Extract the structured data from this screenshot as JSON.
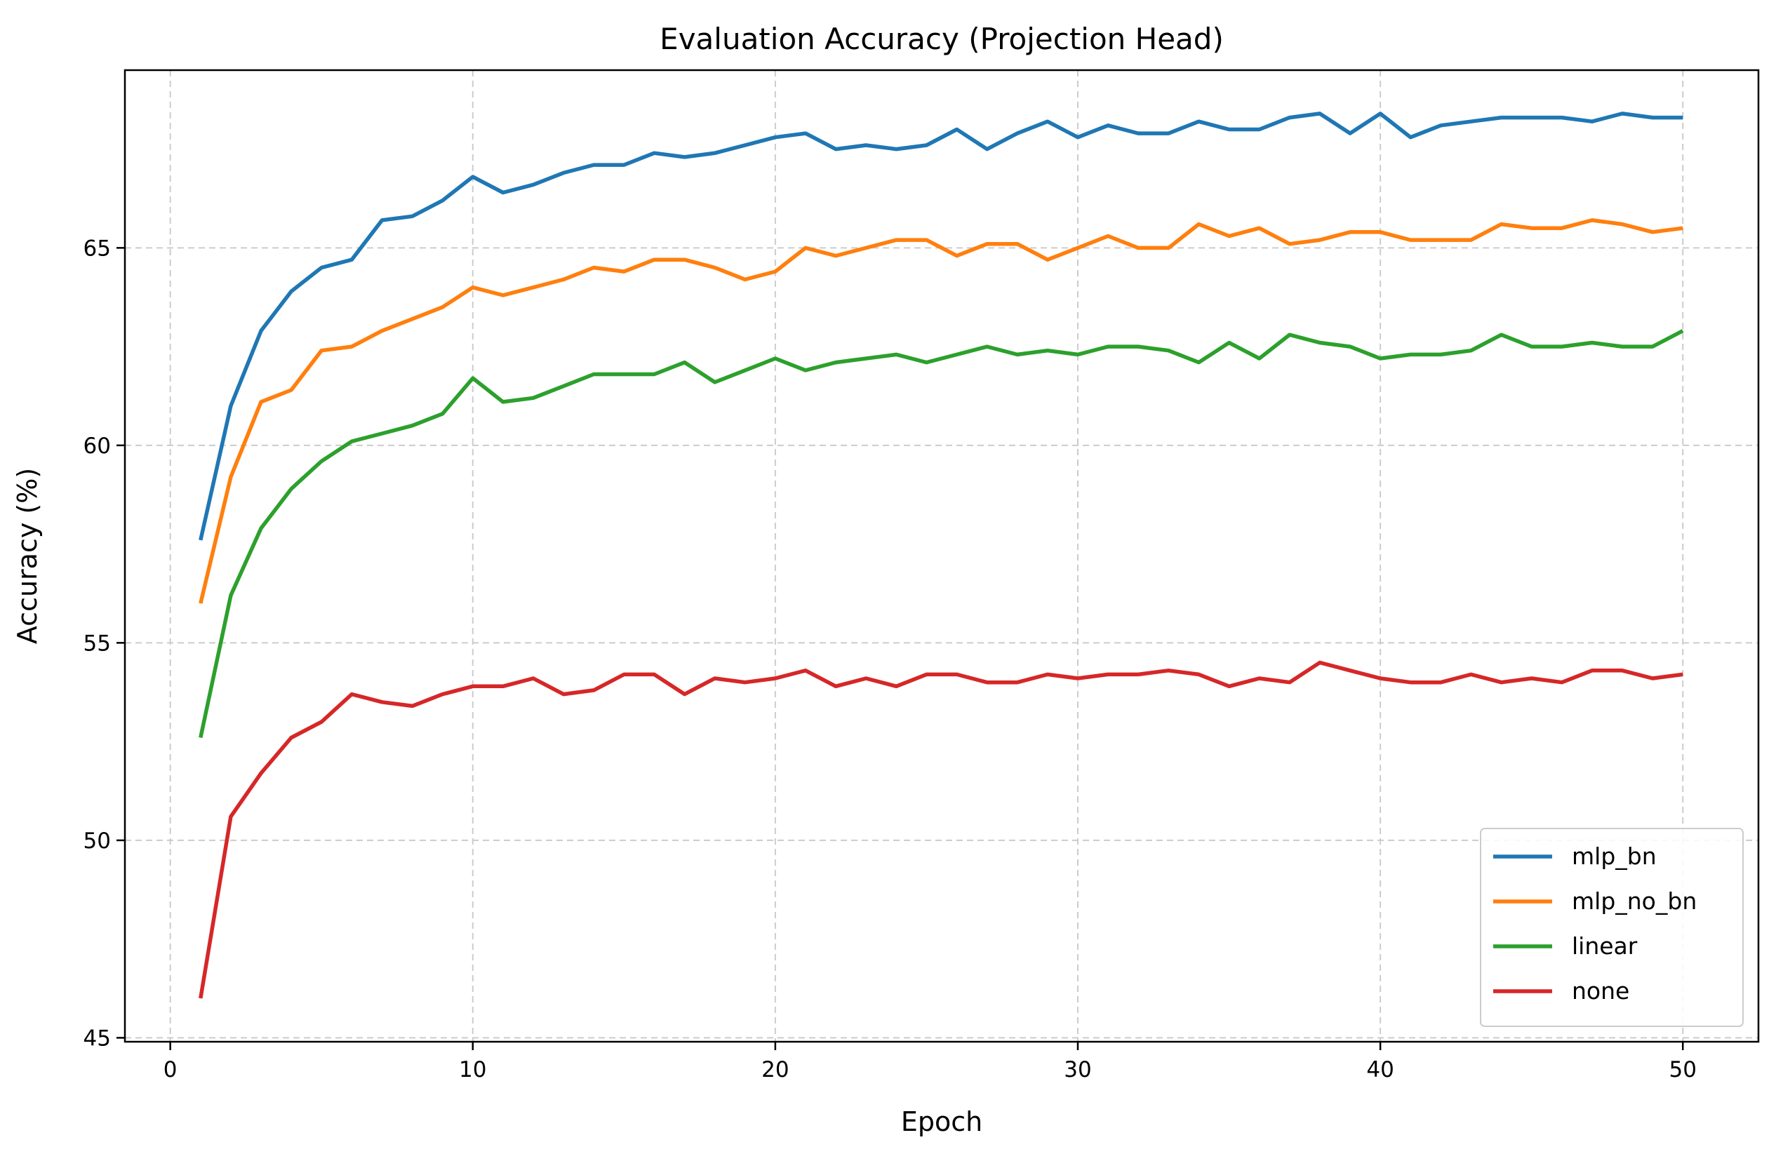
{
  "chart_data": {
    "type": "line",
    "title": "Evaluation Accuracy (Projection Head)",
    "xlabel": "Epoch",
    "ylabel": "Accuracy (%)",
    "xlim": [
      -1.5,
      52.5
    ],
    "ylim": [
      44.9,
      69.5
    ],
    "xticks": [
      0,
      10,
      20,
      30,
      40,
      50
    ],
    "yticks": [
      45,
      50,
      55,
      60,
      65
    ],
    "grid": true,
    "legend_position": "lower right",
    "x": [
      1,
      2,
      3,
      4,
      5,
      6,
      7,
      8,
      9,
      10,
      11,
      12,
      13,
      14,
      15,
      16,
      17,
      18,
      19,
      20,
      21,
      22,
      23,
      24,
      25,
      26,
      27,
      28,
      29,
      30,
      31,
      32,
      33,
      34,
      35,
      36,
      37,
      38,
      39,
      40,
      41,
      42,
      43,
      44,
      45,
      46,
      47,
      48,
      49,
      50
    ],
    "series": [
      {
        "name": "mlp_bn",
        "color": "#1f77b4",
        "values": [
          57.6,
          61.0,
          62.9,
          63.9,
          64.5,
          64.7,
          65.7,
          65.8,
          66.2,
          66.8,
          66.4,
          66.6,
          66.9,
          67.1,
          67.1,
          67.4,
          67.3,
          67.4,
          67.6,
          67.8,
          67.9,
          67.5,
          67.6,
          67.5,
          67.6,
          68.0,
          67.5,
          67.9,
          68.2,
          67.8,
          68.1,
          67.9,
          67.9,
          68.2,
          68.0,
          68.0,
          68.3,
          68.4,
          67.9,
          68.4,
          67.8,
          68.1,
          68.2,
          68.3,
          68.3,
          68.3,
          68.2,
          68.4,
          68.3,
          68.3
        ]
      },
      {
        "name": "mlp_no_bn",
        "color": "#ff7f0e",
        "values": [
          56.0,
          59.2,
          61.1,
          61.4,
          62.4,
          62.5,
          62.9,
          63.2,
          63.5,
          64.0,
          63.8,
          64.0,
          64.2,
          64.5,
          64.4,
          64.7,
          64.7,
          64.5,
          64.2,
          64.4,
          65.0,
          64.8,
          65.0,
          65.2,
          65.2,
          64.8,
          65.1,
          65.1,
          64.7,
          65.0,
          65.3,
          65.0,
          65.0,
          65.6,
          65.3,
          65.5,
          65.1,
          65.2,
          65.4,
          65.4,
          65.2,
          65.2,
          65.2,
          65.6,
          65.5,
          65.5,
          65.7,
          65.6,
          65.4,
          65.5
        ]
      },
      {
        "name": "linear",
        "color": "#2ca02c",
        "values": [
          52.6,
          56.2,
          57.9,
          58.9,
          59.6,
          60.1,
          60.3,
          60.5,
          60.8,
          61.7,
          61.1,
          61.2,
          61.5,
          61.8,
          61.8,
          61.8,
          62.1,
          61.6,
          61.9,
          62.2,
          61.9,
          62.1,
          62.2,
          62.3,
          62.1,
          62.3,
          62.5,
          62.3,
          62.4,
          62.3,
          62.5,
          62.5,
          62.4,
          62.1,
          62.6,
          62.2,
          62.8,
          62.6,
          62.5,
          62.2,
          62.3,
          62.3,
          62.4,
          62.8,
          62.5,
          62.5,
          62.6,
          62.5,
          62.5,
          62.9
        ]
      },
      {
        "name": "none",
        "color": "#d62728",
        "values": [
          46.0,
          50.6,
          51.7,
          52.6,
          53.0,
          53.7,
          53.5,
          53.4,
          53.7,
          53.9,
          53.9,
          54.1,
          53.7,
          53.8,
          54.2,
          54.2,
          53.7,
          54.1,
          54.0,
          54.1,
          54.3,
          53.9,
          54.1,
          53.9,
          54.2,
          54.2,
          54.0,
          54.0,
          54.2,
          54.1,
          54.2,
          54.2,
          54.3,
          54.2,
          53.9,
          54.1,
          54.0,
          54.5,
          54.3,
          54.1,
          54.0,
          54.0,
          54.2,
          54.0,
          54.1,
          54.0,
          54.3,
          54.3,
          54.1,
          54.2
        ]
      }
    ]
  }
}
